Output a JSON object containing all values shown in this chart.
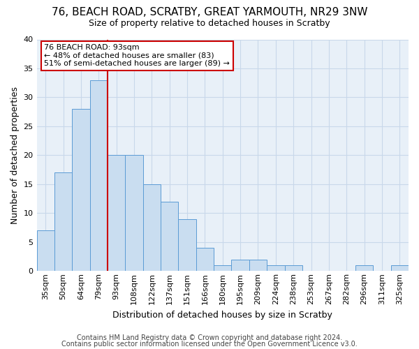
{
  "title_line1": "76, BEACH ROAD, SCRATBY, GREAT YARMOUTH, NR29 3NW",
  "title_line2": "Size of property relative to detached houses in Scratby",
  "xlabel": "Distribution of detached houses by size in Scratby",
  "ylabel": "Number of detached properties",
  "footnote1": "Contains HM Land Registry data © Crown copyright and database right 2024.",
  "footnote2": "Contains public sector information licensed under the Open Government Licence v3.0.",
  "bar_labels": [
    "35sqm",
    "50sqm",
    "64sqm",
    "79sqm",
    "93sqm",
    "108sqm",
    "122sqm",
    "137sqm",
    "151sqm",
    "166sqm",
    "180sqm",
    "195sqm",
    "209sqm",
    "224sqm",
    "238sqm",
    "253sqm",
    "267sqm",
    "282sqm",
    "296sqm",
    "311sqm",
    "325sqm"
  ],
  "bar_values": [
    7,
    17,
    28,
    33,
    20,
    20,
    15,
    12,
    9,
    4,
    1,
    2,
    2,
    1,
    1,
    0,
    0,
    0,
    1,
    0,
    1
  ],
  "bar_color": "#c9ddf0",
  "bar_edge_color": "#5b9bd5",
  "red_line_index": 4,
  "annotation_line1": "76 BEACH ROAD: 93sqm",
  "annotation_line2": "← 48% of detached houses are smaller (83)",
  "annotation_line3": "51% of semi-detached houses are larger (89) →",
  "annotation_box_color": "#ffffff",
  "annotation_border_color": "#cc0000",
  "ylim": [
    0,
    40
  ],
  "yticks": [
    0,
    5,
    10,
    15,
    20,
    25,
    30,
    35,
    40
  ],
  "grid_color": "#c8d8ea",
  "axes_bg_color": "#e8f0f8",
  "background_color": "#ffffff",
  "title1_fontsize": 11,
  "title2_fontsize": 9,
  "ylabel_fontsize": 9,
  "xlabel_fontsize": 9,
  "tick_fontsize": 8,
  "footnote_fontsize": 7
}
